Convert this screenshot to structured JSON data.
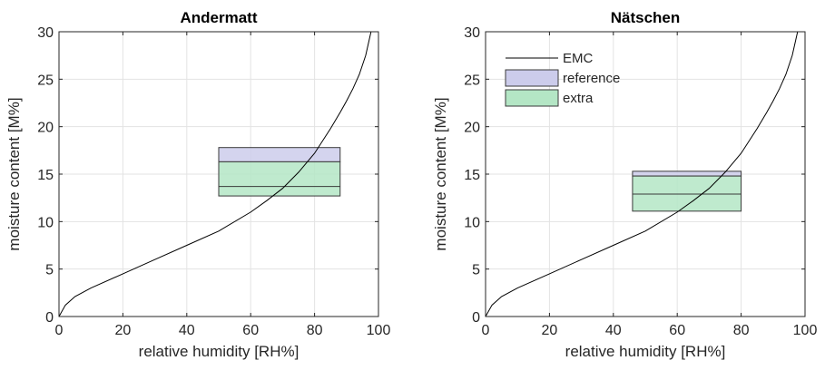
{
  "chart_data": [
    {
      "type": "line",
      "title": "Andermatt",
      "xlabel": "relative humidity [RH%]",
      "ylabel": "moisture content [M%]",
      "xlim": [
        0,
        100
      ],
      "ylim": [
        0,
        30
      ],
      "xticks": [
        "0",
        "20",
        "40",
        "60",
        "80",
        "100"
      ],
      "yticks": [
        "0",
        "5",
        "10",
        "15",
        "20",
        "25",
        "30"
      ],
      "grid": true,
      "series": [
        {
          "name": "EMC",
          "x": [
            0,
            2,
            5,
            10,
            20,
            30,
            40,
            50,
            60,
            65,
            70,
            75,
            80,
            85,
            88,
            90,
            92,
            94,
            96,
            97,
            98
          ],
          "y": [
            0,
            1.2,
            2.1,
            3.0,
            4.5,
            6.0,
            7.5,
            9.0,
            11.0,
            12.2,
            13.5,
            15.2,
            17.2,
            19.8,
            21.5,
            22.7,
            24.0,
            25.5,
            27.5,
            29.0,
            30.5
          ]
        }
      ],
      "bands": [
        {
          "name": "reference",
          "x": [
            50,
            88
          ],
          "y": [
            16.3,
            17.8
          ],
          "color": "#cccceb"
        },
        {
          "name": "extra",
          "x": [
            50,
            88
          ],
          "y": [
            12.7,
            16.3
          ],
          "color": "#b4e6c5",
          "mid": 13.7
        }
      ]
    },
    {
      "type": "line",
      "title": "Nätschen",
      "xlabel": "relative humidity [RH%]",
      "ylabel": "moisture content [M%]",
      "xlim": [
        0,
        100
      ],
      "ylim": [
        0,
        30
      ],
      "xticks": [
        "0",
        "20",
        "40",
        "60",
        "80",
        "100"
      ],
      "yticks": [
        "0",
        "5",
        "10",
        "15",
        "20",
        "25",
        "30"
      ],
      "grid": true,
      "legend": "top-left",
      "legend_entries": [
        "EMC",
        "reference",
        "extra"
      ],
      "series": [
        {
          "name": "EMC",
          "x": [
            0,
            2,
            5,
            10,
            20,
            30,
            40,
            50,
            60,
            65,
            70,
            75,
            80,
            85,
            88,
            90,
            92,
            94,
            96,
            97,
            98
          ],
          "y": [
            0,
            1.2,
            2.1,
            3.0,
            4.5,
            6.0,
            7.5,
            9.0,
            11.0,
            12.2,
            13.5,
            15.2,
            17.2,
            19.8,
            21.5,
            22.7,
            24.0,
            25.5,
            27.5,
            29.0,
            30.5
          ]
        }
      ],
      "bands": [
        {
          "name": "reference",
          "x": [
            46,
            80
          ],
          "y": [
            14.8,
            15.3
          ],
          "color": "#cccceb"
        },
        {
          "name": "extra",
          "x": [
            46,
            80
          ],
          "y": [
            11.1,
            14.8
          ],
          "color": "#b4e6c5",
          "mid": 12.9
        }
      ]
    }
  ],
  "colors": {
    "reference": "#cccceb",
    "extra": "#b4e6c5",
    "line": "#000000",
    "grid": "#e3e3e3",
    "axis": "#262626"
  }
}
